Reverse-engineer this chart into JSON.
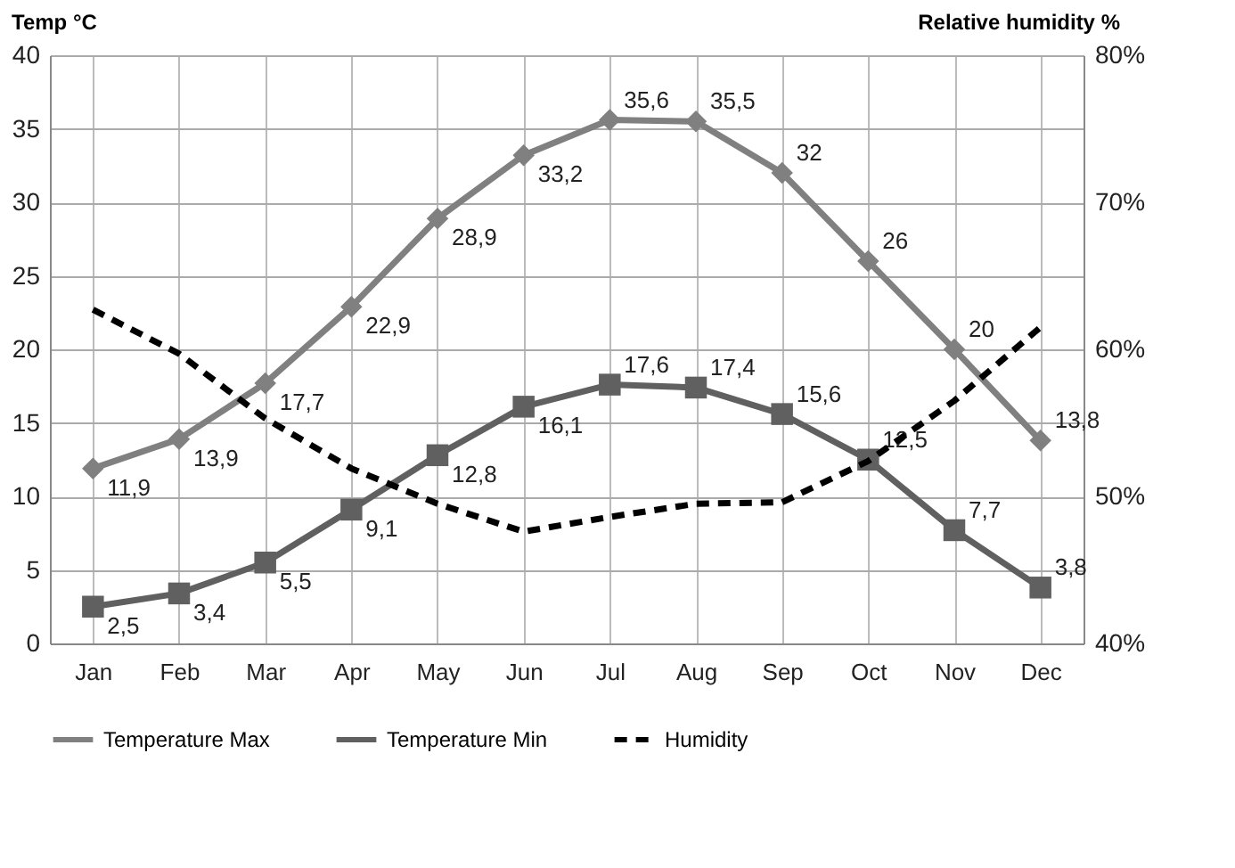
{
  "chart_data": {
    "type": "line",
    "ylabel": "Temp °C",
    "y2label": "Relative humidity %",
    "categories": [
      "Jan",
      "Feb",
      "Mar",
      "Apr",
      "May",
      "Jun",
      "Jul",
      "Aug",
      "Sep",
      "Oct",
      "Nov",
      "Dec"
    ],
    "series": [
      {
        "name": "Temperature Max",
        "color": "#808080",
        "marker": "diamond",
        "line_style": "solid",
        "values": [
          11.9,
          13.9,
          17.7,
          22.9,
          28.9,
          33.2,
          35.6,
          35.5,
          32,
          26,
          20,
          13.8
        ],
        "value_labels": [
          "11,9",
          "13,9",
          "17,7",
          "22,9",
          "28,9",
          "33,2",
          "35,6",
          "35,5",
          "32",
          "26",
          "20",
          "13,8"
        ]
      },
      {
        "name": "Temperature Min",
        "color": "#606060",
        "marker": "square",
        "line_style": "solid",
        "values": [
          2.5,
          3.4,
          5.5,
          9.1,
          12.8,
          16.1,
          17.6,
          17.4,
          15.6,
          12.5,
          7.7,
          3.8
        ],
        "value_labels": [
          "2,5",
          "3,4",
          "5,5",
          "9,1",
          "12,8",
          "16,1",
          "17,6",
          "17,4",
          "15,6",
          "12,5",
          "7,7",
          "3,8"
        ]
      },
      {
        "name": "Humidity",
        "color": "#000000",
        "marker": "none",
        "line_style": "dashed",
        "axis": "y2",
        "values": [
          62.7,
          59.7,
          55.3,
          51.9,
          49.5,
          47.6,
          48.6,
          49.5,
          49.6,
          52.4,
          56.5,
          61.5
        ]
      }
    ],
    "ylim": [
      0,
      40
    ],
    "yticks": [
      0,
      5,
      10,
      15,
      20,
      25,
      30,
      35,
      40
    ],
    "y2lim": [
      40,
      80
    ],
    "y2ticks": [
      {
        "value": 40,
        "label": "40%"
      },
      {
        "value": 50,
        "label": "50%"
      },
      {
        "value": 60,
        "label": "60%"
      },
      {
        "value": 70,
        "label": "70%"
      },
      {
        "value": 80,
        "label": "80%"
      }
    ],
    "grid": true,
    "legend": "bottom"
  }
}
